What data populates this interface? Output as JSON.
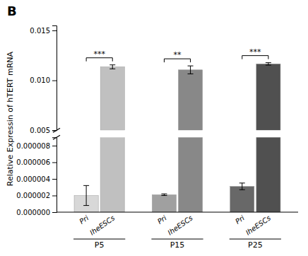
{
  "chart_data": [
    {
      "type": "bar",
      "title": "B",
      "y_label": "Relative Expressin of hTERT mRNA",
      "categories": [
        "P5",
        "P15",
        "P25"
      ],
      "series": [
        {
          "name": "IheESCs",
          "colors": [
            "#c0c0c0",
            "#888888",
            "#505050"
          ],
          "values": [
            0.01135,
            0.01105,
            0.01165
          ],
          "errors": [
            0.0002,
            0.0004,
            0.00012
          ]
        }
      ],
      "annotations": [
        "***",
        "**",
        "***"
      ],
      "ylim": [
        0.005,
        0.0155
      ],
      "yticks": [
        0.005,
        {
          "value": 0.01,
          "label": "0.010"
        },
        0.015
      ]
    },
    {
      "type": "bar",
      "categories": [
        "P5",
        "P15",
        "P25"
      ],
      "series": [
        {
          "name": "Pri",
          "colors": [
            "#d8d8d8",
            "#a0a0a0",
            "#686868"
          ],
          "values": [
            2e-06,
            2.1e-06,
            3.1e-06
          ],
          "errors": [
            1.2e-06,
            1e-07,
            4e-07
          ]
        }
      ],
      "ylim": [
        0,
        9e-06
      ],
      "yticks": [
        {
          "value": 0,
          "label": "0.000000"
        },
        2e-06,
        4e-06,
        6e-06,
        8e-06
      ]
    }
  ]
}
